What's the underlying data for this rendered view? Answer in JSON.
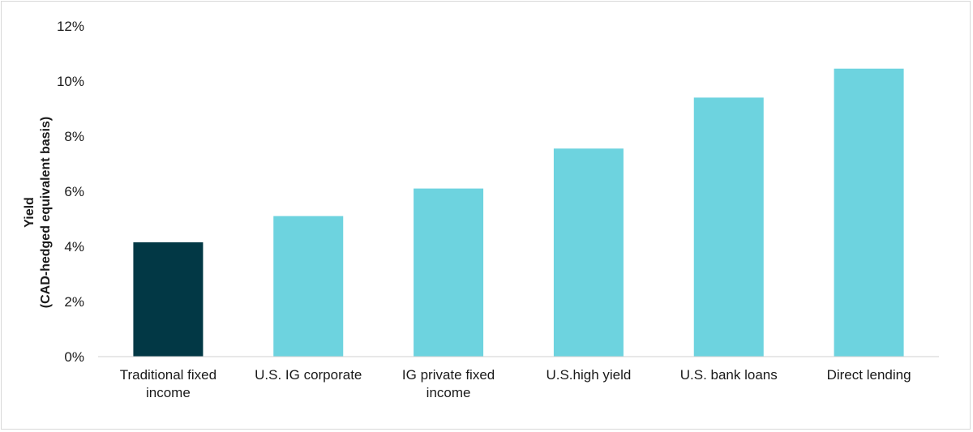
{
  "chart_data": {
    "type": "bar",
    "title": "",
    "xlabel": "",
    "ylabel": "Yield",
    "ylabel_sub": "(CAD-hedged equivalent basis)",
    "categories": [
      [
        "Traditional fixed",
        "income"
      ],
      [
        "U.S. IG corporate"
      ],
      [
        "IG private fixed",
        "income"
      ],
      [
        "U.S.high yield"
      ],
      [
        "U.S. bank loans"
      ],
      [
        "Direct lending"
      ]
    ],
    "values": [
      4.15,
      5.1,
      6.1,
      7.55,
      9.4,
      10.45
    ],
    "bar_colors": [
      "#023845",
      "#6DD3DF",
      "#6DD3DF",
      "#6DD3DF",
      "#6DD3DF",
      "#6DD3DF"
    ],
    "ylim": [
      0,
      12
    ],
    "yticks": [
      0,
      2,
      4,
      6,
      8,
      10,
      12
    ],
    "ytick_labels": [
      "0%",
      "2%",
      "4%",
      "6%",
      "8%",
      "10%",
      "12%"
    ],
    "grid": false,
    "legend": "none"
  }
}
